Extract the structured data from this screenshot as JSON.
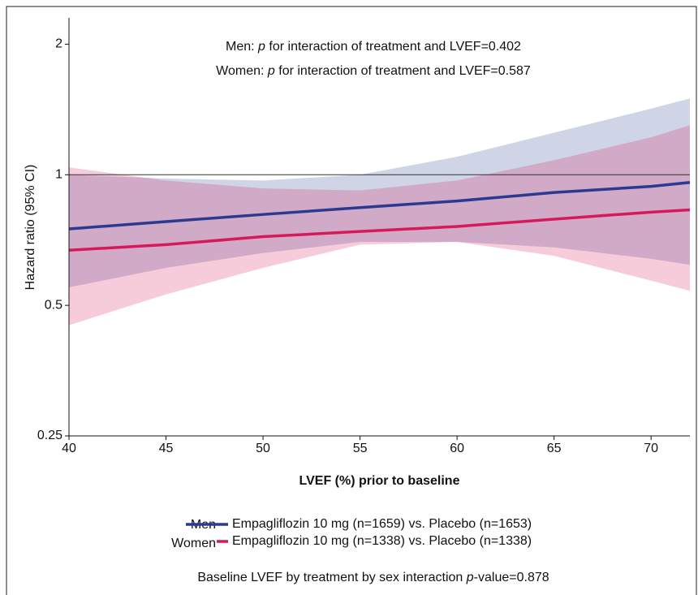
{
  "chart_data": {
    "type": "line",
    "annotations": [
      [
        "Men: ",
        "p",
        " for interaction of treatment and LVEF=0.402"
      ],
      [
        "Women: ",
        "p",
        " for interaction of treatment and LVEF=0.587"
      ]
    ],
    "x_label": "LVEF (%) prior to baseline",
    "y_label": "Hazard ratio (95% CI)",
    "x": [
      40,
      45,
      50,
      55,
      60,
      65,
      70,
      72
    ],
    "series": [
      {
        "name": "Men",
        "label": "Empagliflozin 10 mg (n=1659) vs. Placebo (n=1653)",
        "color": "#2b3990",
        "values": [
          0.75,
          0.78,
          0.81,
          0.84,
          0.87,
          0.91,
          0.94,
          0.96
        ],
        "lower": [
          0.55,
          0.61,
          0.66,
          0.7,
          0.7,
          0.68,
          0.64,
          0.62
        ],
        "upper": [
          1.0,
          0.98,
          0.97,
          1.0,
          1.1,
          1.25,
          1.42,
          1.5
        ]
      },
      {
        "name": "Women",
        "label": "Empagliflozin 10 mg (n=1338) vs. Placebo (n=1338)",
        "color": "#d6195b",
        "values": [
          0.67,
          0.69,
          0.72,
          0.74,
          0.76,
          0.79,
          0.82,
          0.83
        ],
        "lower": [
          0.45,
          0.53,
          0.61,
          0.69,
          0.7,
          0.65,
          0.57,
          0.54
        ],
        "upper": [
          1.04,
          0.97,
          0.93,
          0.92,
          0.97,
          1.08,
          1.22,
          1.3
        ]
      }
    ],
    "reference_line": 1,
    "xlim": [
      40,
      72
    ],
    "xticks": [
      40,
      45,
      50,
      55,
      60,
      65,
      70
    ],
    "ylim": [
      0.25,
      2.3
    ],
    "yticks": [
      0.25,
      0.5,
      1,
      2
    ],
    "log_y": true,
    "footnote": [
      "Baseline LVEF by treatment by sex interaction ",
      "p",
      "-value=0.878"
    ]
  }
}
